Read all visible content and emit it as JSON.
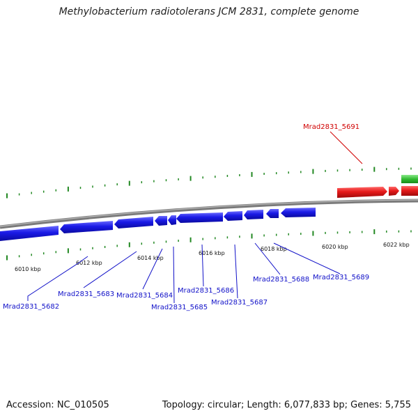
{
  "title": "Methylobacterium radiotolerans JCM 2831, complete genome",
  "footer": {
    "accession": "Accession: NC_010505",
    "summary": "Topology: circular; Length: 6,077,833 bp; Genes: 5,755"
  },
  "colors": {
    "forward_gene": "#e00000",
    "reverse_gene": "#1010e0",
    "other_gene": "#33bb33",
    "tick": "#228822",
    "backbone": "#888888"
  },
  "ticks": [
    {
      "kbp": 6010,
      "label": "6010 kbp"
    },
    {
      "kbp": 6012,
      "label": "6012 kbp"
    },
    {
      "kbp": 6014,
      "label": "6014 kbp"
    },
    {
      "kbp": 6016,
      "label": "6016 kbp"
    },
    {
      "kbp": 6018,
      "label": "6018 kbp"
    },
    {
      "kbp": 6020,
      "label": "6020 kbp"
    },
    {
      "kbp": 6022,
      "label": "6022 kbp"
    }
  ],
  "genes": [
    {
      "name": "Mrad2831_5682",
      "strand": "reverse"
    },
    {
      "name": "Mrad2831_5683",
      "strand": "reverse"
    },
    {
      "name": "Mrad2831_5684",
      "strand": "reverse"
    },
    {
      "name": "Mrad2831_5685",
      "strand": "reverse"
    },
    {
      "name": "Mrad2831_5686",
      "strand": "reverse"
    },
    {
      "name": "Mrad2831_5687",
      "strand": "reverse"
    },
    {
      "name": "Mrad2831_5688",
      "strand": "reverse"
    },
    {
      "name": "Mrad2831_5689",
      "strand": "reverse"
    },
    {
      "name": "Mrad2831_5691",
      "strand": "forward"
    }
  ]
}
